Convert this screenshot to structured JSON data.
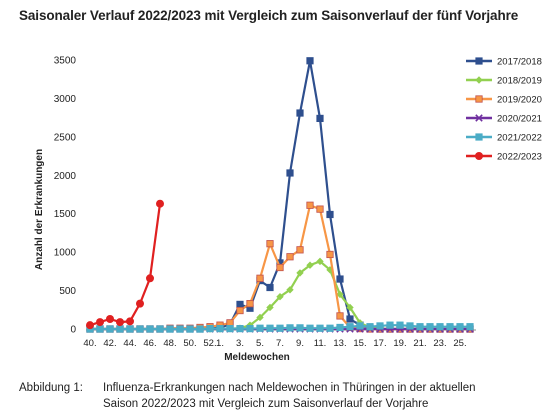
{
  "title": "Saisonaler Verlauf 2022/2023 mit Vergleich zum Saisonverlauf der fünf Vorjahre",
  "caption": {
    "label": "Abbildung 1:",
    "line1": "Influenza-Erkrankungen nach Meldewochen in Thüringen in der aktuellen",
    "line2": "Saison 2022/2023 mit Vergleich zum Saisonverlauf der Vorjahre"
  },
  "chart_data": {
    "type": "line",
    "xlabel": "Meldewochen",
    "ylabel": "Anzahl der Erkrankungen",
    "ylim": [
      0,
      3500
    ],
    "yticks": [
      0,
      500,
      1000,
      1500,
      2000,
      2500,
      3000,
      3500
    ],
    "categories": [
      "40.",
      "41.",
      "42.",
      "43.",
      "44.",
      "45.",
      "46.",
      "47.",
      "48.",
      "49.",
      "50.",
      "51.",
      "52.",
      "1.",
      "2.",
      "3.",
      "4.",
      "5.",
      "6.",
      "7.",
      "8.",
      "9.",
      "10.",
      "11.",
      "12.",
      "13.",
      "14.",
      "15.",
      "16.",
      "17.",
      "18.",
      "19.",
      "20.",
      "21.",
      "22.",
      "23.",
      "24.",
      "25.",
      "26."
    ],
    "xtick_labels": [
      "40.",
      "42.",
      "44.",
      "46.",
      "48.",
      "50.",
      "52.",
      "1.",
      "3.",
      "5.",
      "7.",
      "9.",
      "11.",
      "13.",
      "15.",
      "17.",
      "19.",
      "21.",
      "23.",
      "25."
    ],
    "grid": false,
    "legend_position": "right",
    "series": [
      {
        "name": "2017/2018",
        "color": "#2e4f8e",
        "marker": "square",
        "values": [
          0,
          0,
          0,
          0,
          0,
          0,
          0,
          0,
          0,
          0,
          0,
          0,
          10,
          20,
          60,
          320,
          270,
          630,
          540,
          860,
          2030,
          2810,
          3490,
          2740,
          1490,
          650,
          130,
          50,
          10,
          0,
          0,
          0,
          0,
          0,
          0,
          0,
          0,
          0,
          0
        ]
      },
      {
        "name": "2018/2019",
        "color": "#92d050",
        "marker": "diamond",
        "values": [
          0,
          0,
          0,
          0,
          0,
          0,
          0,
          0,
          0,
          0,
          0,
          0,
          0,
          0,
          5,
          10,
          50,
          150,
          280,
          420,
          510,
          730,
          830,
          880,
          770,
          450,
          280,
          80,
          20,
          5,
          0,
          0,
          0,
          0,
          0,
          0,
          0,
          0,
          0
        ]
      },
      {
        "name": "2019/2020",
        "color": "#f79646",
        "marker": "square",
        "values": [
          0,
          0,
          0,
          0,
          0,
          0,
          0,
          0,
          10,
          10,
          10,
          20,
          30,
          50,
          80,
          240,
          330,
          660,
          1110,
          800,
          940,
          1030,
          1610,
          1560,
          970,
          170,
          20,
          5,
          0,
          0,
          0,
          0,
          0,
          0,
          0,
          0,
          0,
          0,
          0
        ]
      },
      {
        "name": "2020/2021",
        "color": "#7030a0",
        "marker": "x",
        "values": [
          0,
          0,
          0,
          0,
          0,
          0,
          0,
          0,
          0,
          0,
          0,
          0,
          0,
          0,
          0,
          0,
          0,
          0,
          0,
          0,
          0,
          0,
          0,
          0,
          0,
          0,
          0,
          0,
          0,
          0,
          0,
          0,
          0,
          0,
          0,
          0,
          0,
          0,
          0
        ]
      },
      {
        "name": "2021/2022",
        "color": "#4bacc6",
        "marker": "square",
        "values": [
          0,
          0,
          0,
          0,
          0,
          0,
          0,
          0,
          0,
          0,
          0,
          0,
          5,
          5,
          5,
          5,
          5,
          10,
          10,
          10,
          15,
          15,
          10,
          10,
          10,
          20,
          30,
          40,
          30,
          40,
          50,
          50,
          40,
          30,
          30,
          30,
          30,
          30,
          30
        ]
      },
      {
        "name": "2022/2023",
        "color": "#e02020",
        "marker": "circle",
        "values": [
          50,
          90,
          130,
          90,
          100,
          330,
          660,
          1630,
          null,
          null,
          null,
          null,
          null,
          null,
          null,
          null,
          null,
          null,
          null,
          null,
          null,
          null,
          null,
          null,
          null,
          null,
          null,
          null,
          null,
          null,
          null,
          null,
          null,
          null,
          null,
          null,
          null,
          null,
          null
        ]
      }
    ]
  }
}
